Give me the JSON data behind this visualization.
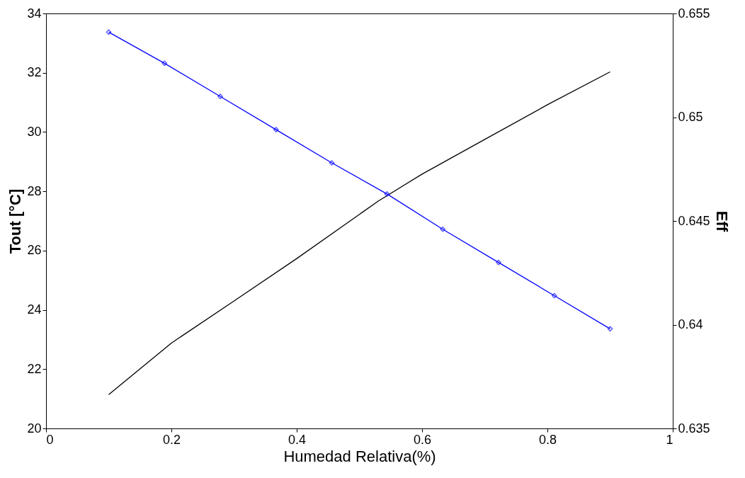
{
  "chart_data": {
    "type": "line",
    "xlabel": "Humedad Relativa(%)",
    "ylabel": "Tout  [°C]",
    "y2label": "Eff",
    "xlim": [
      0,
      1
    ],
    "xticks": [
      0,
      0.2,
      0.4,
      0.6,
      0.8,
      1
    ],
    "ylim": [
      20,
      34
    ],
    "yticks": [
      20,
      22,
      24,
      26,
      28,
      30,
      32,
      34
    ],
    "y2lim": [
      0.635,
      0.655
    ],
    "y2ticks": [
      0.635,
      0.64,
      0.645,
      0.65,
      0.655
    ],
    "grid": false,
    "legend": false,
    "line_style": "solid",
    "series": [
      {
        "color": "#000000",
        "marker": "none",
        "x": [
          0.1,
          0.2,
          0.3,
          0.4,
          0.53,
          0.6,
          0.7,
          0.8,
          0.9
        ],
        "values": [
          21.14,
          22.88,
          24.3,
          25.73,
          27.67,
          28.58,
          29.75,
          30.92,
          32.03
        ]
      },
      {
        "color": "#0000ff",
        "marker": "diamond",
        "axis": "y2",
        "x": [
          0.1,
          0.189,
          0.278,
          0.367,
          0.456,
          0.544,
          0.633,
          0.722,
          0.811,
          0.9
        ],
        "values": [
          0.6541,
          0.6526,
          0.651,
          0.6494,
          0.6478,
          0.6463,
          0.6446,
          0.643,
          0.6414,
          0.6398
        ]
      }
    ]
  }
}
